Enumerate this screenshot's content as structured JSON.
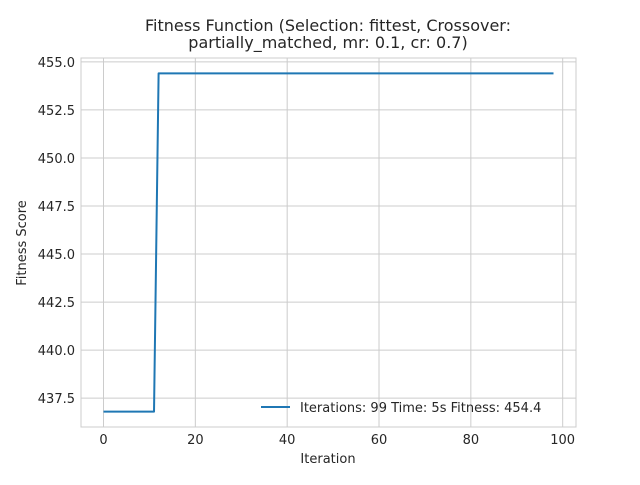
{
  "chart_data": {
    "type": "line",
    "title_lines": [
      "Fitness Function (Selection: fittest, Crossover:",
      "partially_matched, mr: 0.1, cr: 0.7)"
    ],
    "xlabel": "Iteration",
    "ylabel": "Fitness Score",
    "xlim": [
      -4.9,
      102.9
    ],
    "ylim": [
      436.0,
      455.2
    ],
    "xticks": [
      0,
      20,
      40,
      60,
      80,
      100
    ],
    "xtick_labels": [
      "0",
      "20",
      "40",
      "60",
      "80",
      "100"
    ],
    "yticks": [
      437.5,
      440.0,
      442.5,
      445.0,
      447.5,
      450.0,
      452.5,
      455.0
    ],
    "ytick_labels": [
      "437.5",
      "440.0",
      "442.5",
      "445.0",
      "447.5",
      "450.0",
      "452.5",
      "455.0"
    ],
    "grid": true,
    "legend_position": "lower-right",
    "series": [
      {
        "name": "Iterations: 99 Time: 5s Fitness: 454.4",
        "color": "#1f77b4",
        "x": [
          0,
          11,
          12,
          98
        ],
        "y": [
          436.8,
          436.8,
          454.4,
          454.4
        ]
      }
    ]
  }
}
